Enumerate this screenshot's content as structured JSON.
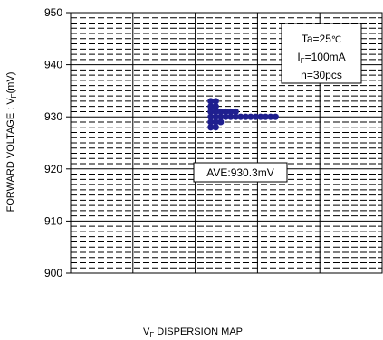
{
  "chart_data": {
    "type": "scatter",
    "title": "",
    "xlabel_main": "V",
    "xlabel_sub": "F",
    "xlabel_rest": " DISPERSION MAP",
    "ylabel_main": "FORWARD VOLTAGE : V",
    "ylabel_sub": "F",
    "ylabel_rest": "(mV)",
    "ylim": [
      900,
      950
    ],
    "yticks": [
      {
        "value": 950,
        "label": "950"
      },
      {
        "value": 940,
        "label": "940"
      },
      {
        "value": 930,
        "label": "930"
      },
      {
        "value": 920,
        "label": "920"
      },
      {
        "value": 910,
        "label": "910"
      },
      {
        "value": 900,
        "label": "900"
      }
    ],
    "xlim": [
      0,
      50
    ],
    "xgrid_values": [
      10,
      20,
      30,
      40
    ],
    "ygrid_minor_step": 1,
    "ygrid_major_step": 10,
    "point_color": "#1f1f8f",
    "points": [
      {
        "x": 22.5,
        "y": 928
      },
      {
        "x": 22.5,
        "y": 929
      },
      {
        "x": 22.5,
        "y": 930
      },
      {
        "x": 22.5,
        "y": 931
      },
      {
        "x": 22.5,
        "y": 932
      },
      {
        "x": 22.5,
        "y": 933
      },
      {
        "x": 23.3,
        "y": 928
      },
      {
        "x": 23.3,
        "y": 929
      },
      {
        "x": 23.3,
        "y": 930
      },
      {
        "x": 23.3,
        "y": 931
      },
      {
        "x": 23.3,
        "y": 932
      },
      {
        "x": 23.3,
        "y": 933
      },
      {
        "x": 24.1,
        "y": 929
      },
      {
        "x": 24.1,
        "y": 930
      },
      {
        "x": 24.1,
        "y": 931
      },
      {
        "x": 24.9,
        "y": 930
      },
      {
        "x": 24.9,
        "y": 931
      },
      {
        "x": 25.7,
        "y": 930
      },
      {
        "x": 25.7,
        "y": 931
      },
      {
        "x": 26.5,
        "y": 930
      },
      {
        "x": 26.5,
        "y": 931
      },
      {
        "x": 27.3,
        "y": 930
      },
      {
        "x": 28.1,
        "y": 930
      },
      {
        "x": 28.9,
        "y": 930
      },
      {
        "x": 29.7,
        "y": 930
      },
      {
        "x": 30.5,
        "y": 930
      },
      {
        "x": 31.3,
        "y": 930
      },
      {
        "x": 32.1,
        "y": 930
      },
      {
        "x": 32.9,
        "y": 930
      }
    ],
    "conditions": {
      "ta_main": "Ta=25",
      "ta_unit": "℃",
      "if_main": "I",
      "if_sub": "F",
      "if_rest": "=100mA",
      "n_label": "n=30pcs"
    },
    "average_label": "AVE:930.3mV"
  }
}
